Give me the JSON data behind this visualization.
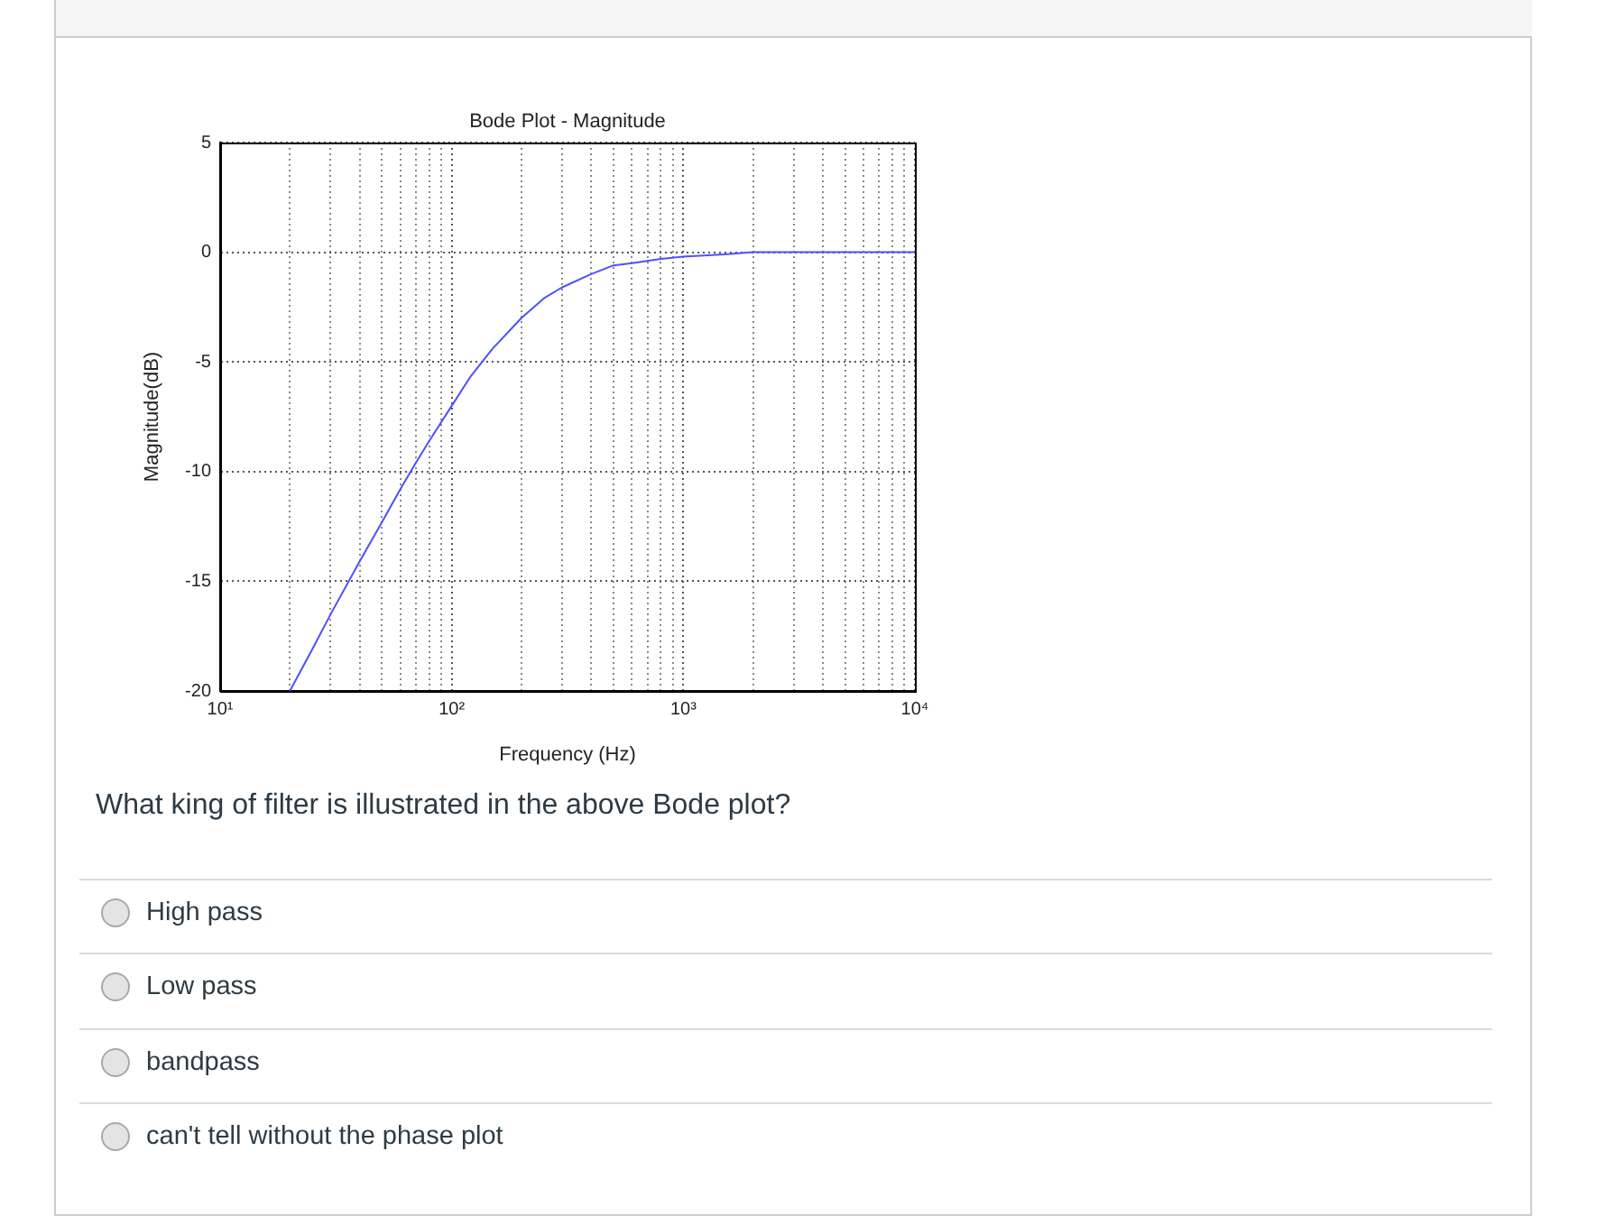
{
  "chart_data": {
    "type": "line",
    "title": "Bode Plot - Magnitude",
    "xlabel": "Frequency (Hz)",
    "ylabel": "Magnitude(dB)",
    "x": [
      20,
      25,
      30,
      40,
      50,
      60,
      70,
      80,
      100,
      120,
      150,
      200,
      250,
      300,
      400,
      500,
      600,
      800,
      1000,
      1500,
      2000,
      3000,
      5000,
      10000
    ],
    "values": [
      -20,
      -18.1,
      -16.5,
      -14.1,
      -12.3,
      -10.8,
      -9.6,
      -8.6,
      -7.0,
      -5.7,
      -4.4,
      -3.0,
      -2.1,
      -1.6,
      -1.0,
      -0.6,
      -0.5,
      -0.3,
      -0.2,
      -0.1,
      0,
      0,
      0,
      0
    ],
    "color": "#4f4fff",
    "log": "x",
    "xlim": [
      10,
      10000
    ],
    "xticks": [
      {
        "value": 10,
        "label": "10¹"
      },
      {
        "value": 20,
        "label": null
      },
      {
        "value": 30,
        "label": null
      },
      {
        "value": 40,
        "label": null
      },
      {
        "value": 50,
        "label": null
      },
      {
        "value": 60,
        "label": null
      },
      {
        "value": 70,
        "label": null
      },
      {
        "value": 80,
        "label": null
      },
      {
        "value": 90,
        "label": null
      },
      {
        "value": 100,
        "label": "10²"
      },
      {
        "value": 200,
        "label": null
      },
      {
        "value": 300,
        "label": null
      },
      {
        "value": 400,
        "label": null
      },
      {
        "value": 500,
        "label": null
      },
      {
        "value": 600,
        "label": null
      },
      {
        "value": 700,
        "label": null
      },
      {
        "value": 800,
        "label": null
      },
      {
        "value": 900,
        "label": null
      },
      {
        "value": 1000,
        "label": "10³"
      },
      {
        "value": 2000,
        "label": null
      },
      {
        "value": 3000,
        "label": null
      },
      {
        "value": 4000,
        "label": null
      },
      {
        "value": 5000,
        "label": null
      },
      {
        "value": 6000,
        "label": null
      },
      {
        "value": 7000,
        "label": null
      },
      {
        "value": 8000,
        "label": null
      },
      {
        "value": 9000,
        "label": null
      },
      {
        "value": 10000,
        "label": "10⁴"
      }
    ],
    "ylim": [
      -20,
      5
    ],
    "yticks": [
      -20,
      -15,
      -10,
      -5,
      0,
      5
    ],
    "grid": true,
    "annotations": [
      "What king of filter is illustrated in the above Bode plot?",
      "High pass",
      "Low pass",
      "bandpass",
      "can't tell without the phase plot"
    ]
  }
}
